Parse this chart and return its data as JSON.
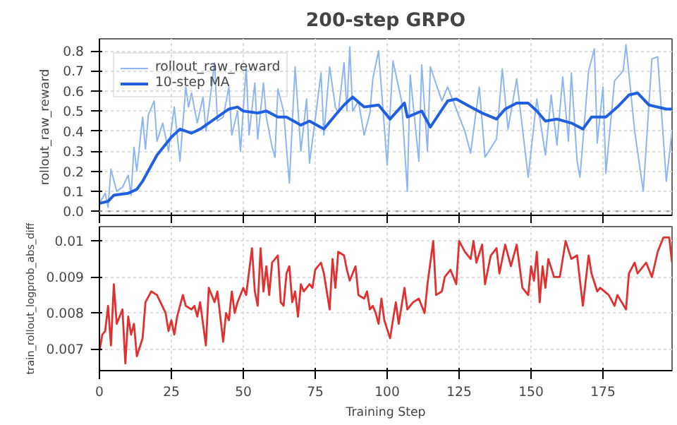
{
  "chart_data": [
    {
      "type": "line",
      "title": "200-step GRPO",
      "ylabel": "rollout_raw_reward",
      "xlim": [
        0,
        199
      ],
      "ylim": [
        -0.02,
        0.86
      ],
      "xticks": [
        0,
        25,
        50,
        75,
        100,
        125,
        150,
        175
      ],
      "yticks": [
        {
          "value": 0,
          "label": "0.0"
        },
        0.1,
        0.2,
        0.3,
        0.4,
        0.5,
        0.6,
        0.7,
        0.8
      ],
      "tick_labels": "y",
      "grid": true,
      "legend": "top left",
      "ref_lines": [
        {
          "axis": "y",
          "value": 0,
          "color": "#999999",
          "line_style": "dotted"
        }
      ],
      "series": [
        {
          "name": "rollout_raw_reward",
          "color": "#8fb4f2",
          "x": [
            0,
            2,
            3,
            4,
            6,
            8,
            10,
            11,
            12,
            13,
            15,
            16,
            17,
            19,
            20,
            22,
            24,
            26,
            28,
            30,
            31,
            32,
            34,
            36,
            37,
            38,
            40,
            41,
            43,
            45,
            46,
            48,
            49,
            51,
            52,
            54,
            55,
            57,
            58,
            60,
            61,
            62,
            64,
            66,
            68,
            70,
            72,
            73,
            75,
            77,
            78,
            80,
            82,
            83,
            85,
            86,
            87,
            88,
            90,
            92,
            94,
            95,
            97,
            100,
            102,
            105,
            107,
            108,
            111,
            112,
            114,
            115,
            119,
            121,
            127,
            129,
            132,
            134,
            138,
            140,
            142,
            145,
            149,
            152,
            155,
            157,
            159,
            161,
            163,
            164,
            166,
            167,
            170,
            172,
            173,
            175,
            176,
            179,
            182,
            183,
            186,
            189,
            192,
            194,
            197,
            199
          ],
          "values": [
            0.04,
            0.09,
            0.02,
            0.21,
            0.1,
            0.12,
            0.18,
            0.08,
            0.32,
            0.2,
            0.47,
            0.31,
            0.48,
            0.55,
            0.35,
            0.44,
            0.3,
            0.52,
            0.25,
            0.62,
            0.52,
            0.59,
            0.44,
            0.57,
            0.4,
            0.51,
            0.74,
            0.45,
            0.47,
            0.62,
            0.38,
            0.5,
            0.3,
            0.72,
            0.38,
            0.64,
            0.36,
            0.64,
            0.47,
            0.32,
            0.27,
            0.61,
            0.5,
            0.14,
            0.72,
            0.3,
            0.56,
            0.24,
            0.46,
            0.69,
            0.38,
            0.72,
            0.52,
            0.49,
            0.74,
            0.5,
            0.82,
            0.5,
            0.55,
            0.38,
            0.49,
            0.66,
            0.8,
            0.23,
            0.75,
            0.55,
            0.1,
            0.68,
            0.25,
            0.73,
            0.3,
            0.72,
            0.55,
            0.62,
            0.4,
            0.29,
            0.62,
            0.27,
            0.36,
            0.71,
            0.41,
            0.66,
            0.17,
            0.56,
            0.28,
            0.58,
            0.33,
            0.67,
            0.35,
            0.69,
            0.25,
            0.17,
            0.7,
            0.81,
            0.34,
            0.62,
            0.19,
            0.65,
            0.7,
            0.83,
            0.4,
            0.1,
            0.76,
            0.77,
            0.15,
            0.4
          ]
        },
        {
          "name": "10-step MA",
          "color": "#1f5fe0",
          "x": [
            0,
            3,
            5,
            10,
            13,
            15,
            20,
            25,
            28,
            32,
            35,
            38,
            42,
            45,
            48,
            50,
            55,
            58,
            62,
            65,
            70,
            73,
            78,
            82,
            85,
            88,
            92,
            97,
            101,
            106,
            107,
            112,
            115,
            121,
            124,
            129,
            133,
            138,
            141,
            145,
            149,
            152,
            155,
            159,
            164,
            168,
            171,
            176,
            180,
            184,
            187,
            191,
            197,
            199
          ],
          "values": [
            0.04,
            0.05,
            0.08,
            0.09,
            0.11,
            0.15,
            0.28,
            0.37,
            0.41,
            0.39,
            0.41,
            0.44,
            0.48,
            0.51,
            0.52,
            0.5,
            0.49,
            0.5,
            0.47,
            0.47,
            0.43,
            0.45,
            0.41,
            0.48,
            0.53,
            0.57,
            0.52,
            0.53,
            0.46,
            0.54,
            0.47,
            0.5,
            0.42,
            0.55,
            0.56,
            0.52,
            0.49,
            0.46,
            0.51,
            0.54,
            0.54,
            0.5,
            0.45,
            0.46,
            0.44,
            0.41,
            0.47,
            0.47,
            0.52,
            0.58,
            0.59,
            0.53,
            0.51,
            0.51
          ]
        }
      ]
    },
    {
      "type": "line",
      "xlabel": "Training Step",
      "ylabel": "train_rollout_logprob_abs_diff",
      "xlim": [
        0,
        199
      ],
      "ylim": [
        0.0064,
        0.0104
      ],
      "xticks": [
        0,
        25,
        50,
        75,
        100,
        125,
        150,
        175
      ],
      "yticks": [
        0.007,
        0.008,
        0.009,
        0.01
      ],
      "grid": true,
      "series": [
        {
          "color": "#e03030",
          "x": [
            0,
            1,
            2,
            3,
            4,
            5,
            6,
            8,
            9,
            10,
            11,
            12,
            13,
            15,
            16,
            18,
            20,
            23,
            24,
            25,
            26,
            27,
            29,
            30,
            32,
            33,
            34,
            35,
            37,
            38,
            40,
            41,
            43,
            44,
            45,
            46,
            47,
            48,
            50,
            51,
            53,
            54,
            55,
            56,
            57,
            58,
            59,
            60,
            62,
            63,
            64,
            65,
            66,
            67,
            68,
            69,
            70,
            71,
            73,
            74,
            75,
            77,
            78,
            80,
            81,
            82,
            83,
            85,
            86,
            87,
            89,
            90,
            92,
            93,
            94,
            95,
            96,
            97,
            98,
            99,
            101,
            103,
            104,
            106,
            107,
            109,
            111,
            113,
            114,
            116,
            117,
            119,
            120,
            122,
            124,
            125,
            127,
            129,
            130,
            131,
            133,
            134,
            136,
            138,
            139,
            141,
            143,
            145,
            147,
            149,
            150,
            151,
            152,
            153,
            154,
            155,
            156,
            158,
            160,
            162,
            164,
            166,
            168,
            170,
            171,
            173,
            174,
            177,
            179,
            180,
            183,
            184,
            186,
            187,
            190,
            192,
            194,
            196,
            198,
            199
          ],
          "values": [
            0.00695,
            0.0074,
            0.0075,
            0.0082,
            0.0071,
            0.0088,
            0.0077,
            0.0081,
            0.0066,
            0.0079,
            0.0074,
            0.0077,
            0.0068,
            0.0073,
            0.0083,
            0.0086,
            0.0085,
            0.008,
            0.0075,
            0.0078,
            0.0074,
            0.0079,
            0.0085,
            0.0082,
            0.0081,
            0.0082,
            0.0079,
            0.0083,
            0.0071,
            0.0087,
            0.0083,
            0.0086,
            0.0072,
            0.008,
            0.0078,
            0.0086,
            0.008,
            0.0083,
            0.0087,
            0.0085,
            0.0098,
            0.0086,
            0.0082,
            0.0098,
            0.0086,
            0.0093,
            0.0085,
            0.0094,
            0.0096,
            0.0083,
            0.0082,
            0.0091,
            0.0093,
            0.0083,
            0.0086,
            0.0079,
            0.0088,
            0.0086,
            0.0088,
            0.0087,
            0.0092,
            0.0094,
            0.0091,
            0.0081,
            0.0095,
            0.0087,
            0.0097,
            0.0096,
            0.0092,
            0.0089,
            0.0093,
            0.0085,
            0.0084,
            0.0086,
            0.0081,
            0.0082,
            0.008,
            0.0077,
            0.0084,
            0.0078,
            0.0073,
            0.0083,
            0.0077,
            0.0087,
            0.0081,
            0.0083,
            0.0084,
            0.008,
            0.0088,
            0.01,
            0.0085,
            0.0086,
            0.009,
            0.0092,
            0.0088,
            0.01,
            0.0097,
            0.0095,
            0.01,
            0.0094,
            0.0099,
            0.0088,
            0.0096,
            0.0098,
            0.0091,
            0.0099,
            0.0093,
            0.0099,
            0.0087,
            0.0085,
            0.0093,
            0.0089,
            0.0097,
            0.0083,
            0.0093,
            0.0087,
            0.0095,
            0.009,
            0.009,
            0.01,
            0.0095,
            0.0096,
            0.0082,
            0.0096,
            0.0091,
            0.0086,
            0.0087,
            0.0085,
            0.0082,
            0.0085,
            0.0081,
            0.0091,
            0.0094,
            0.0091,
            0.0094,
            0.009,
            0.0097,
            0.0101,
            0.0101,
            0.0094
          ]
        }
      ]
    }
  ]
}
